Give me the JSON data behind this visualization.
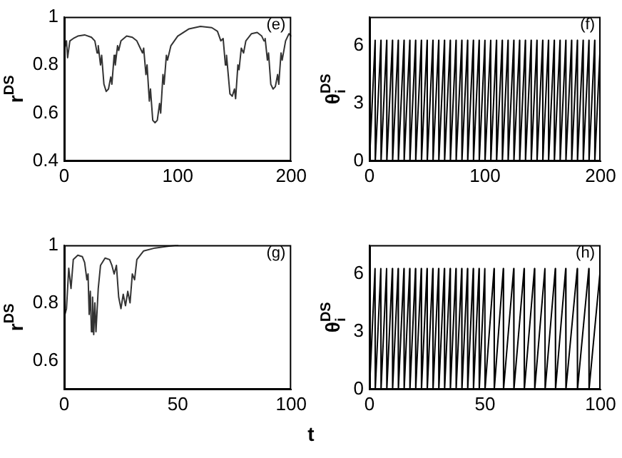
{
  "chart_data": [
    {
      "type": "line",
      "ylabel": "r$^{DS}$",
      "annotations": [
        "(e)"
      ],
      "xlim": [
        0,
        200
      ],
      "ylim": [
        0.4,
        1
      ],
      "xticks": [
        0,
        100,
        200
      ],
      "yticks": [
        0.4,
        0.6,
        0.8,
        1
      ],
      "x": [
        0,
        2,
        3,
        5,
        8,
        12,
        18,
        24,
        27,
        29,
        30,
        32,
        33,
        35,
        37,
        39,
        41,
        42,
        44,
        45,
        47,
        48,
        50,
        55,
        60,
        64,
        67,
        69,
        70,
        72,
        73,
        75,
        76,
        78,
        80,
        82,
        84,
        85,
        87,
        88,
        90,
        91,
        94,
        100,
        110,
        120,
        130,
        135,
        138,
        140,
        142,
        143,
        146,
        148,
        150,
        151,
        153,
        154,
        156,
        158,
        160,
        165,
        170,
        174,
        176,
        177,
        179,
        180,
        182,
        184,
        186,
        188,
        189,
        191,
        192,
        195,
        198,
        200
      ],
      "series": [
        {
          "color": "#333333",
          "values": [
            0.86,
            0.9,
            0.83,
            0.9,
            0.91,
            0.92,
            0.925,
            0.915,
            0.9,
            0.85,
            0.88,
            0.8,
            0.84,
            0.72,
            0.69,
            0.7,
            0.75,
            0.72,
            0.84,
            0.8,
            0.88,
            0.86,
            0.9,
            0.92,
            0.915,
            0.9,
            0.87,
            0.85,
            0.87,
            0.76,
            0.8,
            0.65,
            0.7,
            0.57,
            0.56,
            0.57,
            0.64,
            0.6,
            0.76,
            0.72,
            0.84,
            0.82,
            0.88,
            0.92,
            0.95,
            0.96,
            0.955,
            0.94,
            0.9,
            0.91,
            0.8,
            0.84,
            0.68,
            0.67,
            0.7,
            0.66,
            0.8,
            0.78,
            0.87,
            0.85,
            0.9,
            0.93,
            0.935,
            0.92,
            0.9,
            0.91,
            0.82,
            0.85,
            0.72,
            0.7,
            0.71,
            0.76,
            0.72,
            0.85,
            0.82,
            0.9,
            0.93,
            0.92
          ]
        }
      ]
    },
    {
      "type": "line",
      "ylabel": "θ$_{i}$$^{DS}$",
      "annotations": [
        "(f)"
      ],
      "xlim": [
        0,
        200
      ],
      "ylim": [
        0,
        7.5
      ],
      "xticks": [
        0,
        100,
        200
      ],
      "yticks": [
        0,
        3,
        6
      ],
      "x": [
        0,
        4.9,
        5,
        9.9,
        10,
        14.9,
        15,
        19.9,
        20,
        24.9,
        25,
        29.9,
        30,
        34.9,
        35,
        39.9,
        40,
        44.9,
        45,
        49.9,
        50,
        54.9,
        55,
        59.9,
        60,
        64.9,
        65,
        69.9,
        70,
        74.9,
        75,
        79.9,
        80,
        84.9,
        85,
        89.9,
        90,
        94.9,
        95,
        99.9,
        100,
        104.9,
        105,
        109.9,
        110,
        114.9,
        115,
        119.9,
        120,
        124.9,
        125,
        129.9,
        130,
        134.9,
        135,
        139.9,
        140,
        144.9,
        145,
        149.9,
        150,
        154.9,
        155,
        159.9,
        160,
        164.9,
        165,
        169.9,
        170,
        174.9,
        175,
        179.9,
        180,
        184.9,
        185,
        189.9,
        190,
        194.9,
        195,
        199.9
      ],
      "series": [
        {
          "color": "#000000",
          "values": [
            0,
            6.28,
            0,
            6.28,
            0,
            6.28,
            0,
            6.28,
            0,
            6.28,
            0,
            6.28,
            0,
            6.28,
            0,
            6.28,
            0,
            6.28,
            0,
            6.28,
            0,
            6.28,
            0,
            6.28,
            0,
            6.28,
            0,
            6.28,
            0,
            6.28,
            0,
            6.28,
            0,
            6.28,
            0,
            6.28,
            0,
            6.28,
            0,
            6.28,
            0,
            6.28,
            0,
            6.28,
            0,
            6.28,
            0,
            6.28,
            0,
            6.28,
            0,
            6.28,
            0,
            6.28,
            0,
            6.28,
            0,
            6.28,
            0,
            6.28,
            0,
            6.28,
            0,
            6.28,
            0,
            6.28,
            0,
            6.28,
            0,
            6.28,
            0,
            6.28,
            0,
            6.28,
            0,
            6.28,
            0,
            6.28,
            0,
            6.28
          ]
        }
      ]
    },
    {
      "type": "line",
      "ylabel": "r$^{DS}$",
      "xlabel": "t",
      "annotations": [
        "(g)"
      ],
      "xlim": [
        0,
        100
      ],
      "ylim": [
        0.5,
        1
      ],
      "xticks": [
        0,
        50,
        100
      ],
      "yticks": [
        0.6,
        0.8,
        1
      ],
      "x": [
        0,
        1,
        2,
        3,
        4,
        6,
        8,
        9,
        10,
        10.5,
        11,
        11.5,
        12,
        12.5,
        13,
        13.5,
        14,
        15,
        16,
        18,
        20,
        21,
        22,
        23,
        24,
        25,
        26,
        27,
        28,
        29,
        30,
        31,
        32,
        35,
        40,
        45,
        50
      ],
      "series": [
        {
          "color": "#333333",
          "values": [
            0.75,
            0.78,
            0.92,
            0.85,
            0.95,
            0.965,
            0.96,
            0.94,
            0.88,
            0.9,
            0.76,
            0.84,
            0.7,
            0.82,
            0.69,
            0.8,
            0.7,
            0.85,
            0.93,
            0.955,
            0.95,
            0.93,
            0.9,
            0.93,
            0.82,
            0.78,
            0.83,
            0.79,
            0.84,
            0.8,
            0.9,
            0.88,
            0.95,
            0.98,
            0.99,
            0.995,
            1
          ]
        }
      ]
    },
    {
      "type": "line",
      "ylabel": "θ$_{i}$$^{DS}$",
      "annotations": [
        "(h)"
      ],
      "xlim": [
        0,
        100
      ],
      "ylim": [
        0,
        7.5
      ],
      "xticks": [
        0,
        50,
        100
      ],
      "yticks": [
        0,
        3,
        6
      ],
      "x": [
        0,
        2.4,
        2.5,
        4.9,
        5,
        7.4,
        7.5,
        9.9,
        10,
        12.4,
        12.5,
        14.9,
        15,
        17.4,
        17.5,
        19.9,
        20,
        22.4,
        22.5,
        24.9,
        25,
        27.4,
        27.5,
        29.9,
        30,
        32.4,
        32.5,
        34.9,
        35,
        37.4,
        37.5,
        39.9,
        40,
        42.4,
        42.5,
        44.9,
        45,
        47.4,
        47.5,
        49.9,
        50,
        53.9,
        54,
        57.9,
        58,
        62.4,
        62.5,
        66.9,
        67,
        71.4,
        71.5,
        75.9,
        76,
        80.4,
        80.5,
        84.9,
        85,
        89.9,
        90,
        94.9,
        95,
        99.9
      ],
      "series": [
        {
          "color": "#000000",
          "values": [
            0,
            6.28,
            0,
            6.28,
            0,
            6.28,
            0,
            6.28,
            0,
            6.28,
            0,
            6.28,
            0,
            6.28,
            0,
            6.28,
            0,
            6.28,
            0,
            6.28,
            0,
            6.28,
            0,
            6.28,
            0,
            6.28,
            0,
            6.28,
            0,
            6.28,
            0,
            6.28,
            0,
            6.28,
            0,
            6.28,
            0,
            6.28,
            0,
            6.28,
            0,
            6.28,
            0,
            6.28,
            0,
            6.28,
            0,
            6.28,
            0,
            6.28,
            0,
            6.28,
            0,
            6.28,
            0,
            6.28,
            0,
            6.28,
            0,
            6.28,
            0,
            6.28
          ]
        }
      ]
    }
  ]
}
